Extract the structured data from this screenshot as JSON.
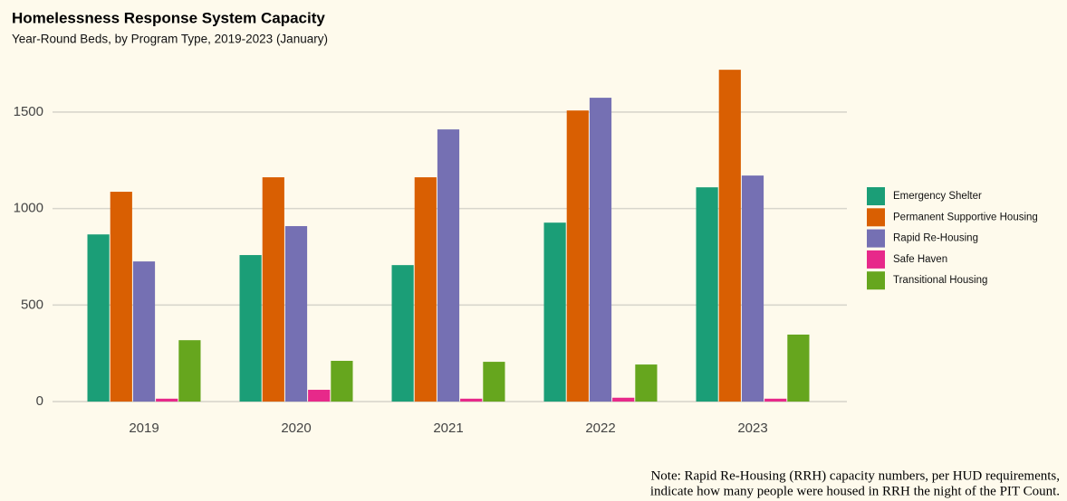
{
  "chart_data": {
    "type": "grouped-bar",
    "title": "Homelessness Response System Capacity",
    "subtitle": "Year-Round Beds, by Program Type, 2019-2023 (January)",
    "categories": [
      "2019",
      "2020",
      "2021",
      "2022",
      "2023"
    ],
    "series": [
      {
        "name": "Emergency Shelter",
        "color": "#1b9e77",
        "values": [
          866,
          759,
          707,
          927,
          1110
        ]
      },
      {
        "name": "Permanent Supportive Housing",
        "color": "#d95f02",
        "values": [
          1087,
          1162,
          1162,
          1508,
          1719
        ]
      },
      {
        "name": "Rapid Re-Housing",
        "color": "#7570b3",
        "values": [
          726,
          909,
          1410,
          1574,
          1171
        ]
      },
      {
        "name": "Safe Haven",
        "color": "#e7298a",
        "values": [
          15,
          61,
          15,
          20,
          15
        ]
      },
      {
        "name": "Transitional Housing",
        "color": "#66a61e",
        "values": [
          318,
          211,
          206,
          192,
          347
        ]
      }
    ],
    "ylim": [
      -56,
      1790
    ],
    "yticks": [
      0,
      500,
      1000,
      1500
    ],
    "grid": true,
    "legend": "right",
    "note": [
      "Note: Rapid Re-Housing (RRH) capacity numbers, per HUD requirements,",
      "indicate how many people were housed in RRH the night of the PIT Count."
    ]
  }
}
